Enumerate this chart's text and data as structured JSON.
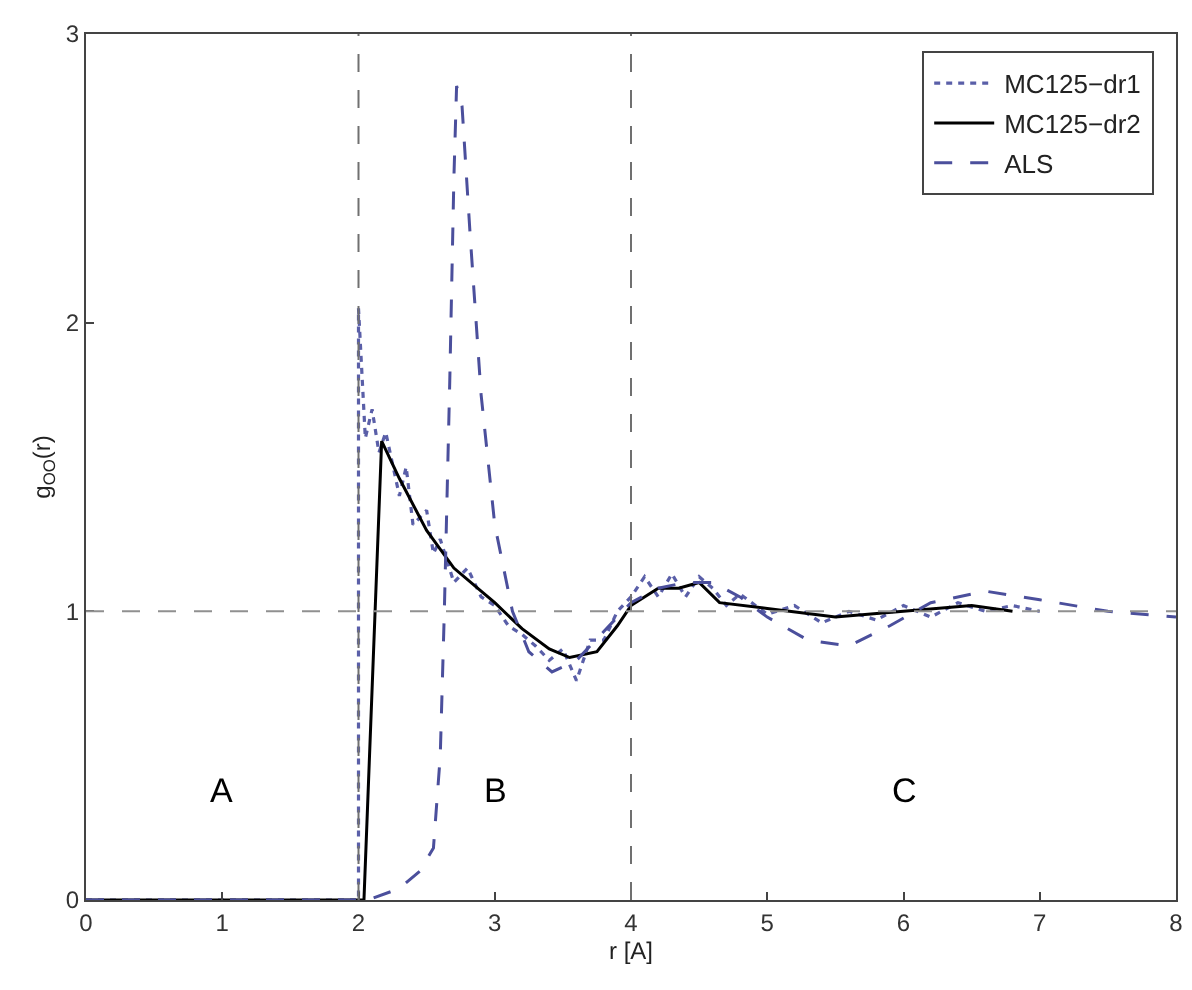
{
  "chart_data": {
    "type": "line",
    "xlabel": "r [A]",
    "ylabel": "g$_{OO}$(r)",
    "xlim": [
      0,
      8
    ],
    "ylim": [
      0,
      3
    ],
    "xticks": [
      0,
      1,
      2,
      3,
      4,
      5,
      6,
      7,
      8
    ],
    "yticks": [
      0,
      1,
      2,
      3
    ],
    "grid": false,
    "legend": "top right",
    "marker": "none",
    "series": [
      {
        "name": "MC125−dr1",
        "color": "#5a5fa8",
        "line_style": "dotted",
        "x": [
          0,
          2.0,
          2.0,
          2.05,
          2.1,
          2.15,
          2.2,
          2.3,
          2.35,
          2.4,
          2.5,
          2.55,
          2.6,
          2.7,
          2.8,
          2.9,
          3.0,
          3.1,
          3.2,
          3.3,
          3.4,
          3.5,
          3.6,
          3.7,
          3.8,
          3.9,
          4.0,
          4.1,
          4.2,
          4.3,
          4.4,
          4.5,
          4.6,
          4.7,
          4.8,
          5.0,
          5.2,
          5.4,
          5.6,
          5.8,
          6.0,
          6.2,
          6.4,
          6.6,
          6.8,
          7.0
        ],
        "values": [
          0,
          0,
          2.05,
          1.6,
          1.7,
          1.55,
          1.62,
          1.4,
          1.5,
          1.3,
          1.35,
          1.2,
          1.25,
          1.1,
          1.15,
          1.05,
          1.02,
          0.95,
          0.92,
          0.88,
          0.83,
          0.87,
          0.76,
          0.9,
          0.9,
          1.0,
          1.05,
          1.12,
          1.05,
          1.13,
          1.05,
          1.12,
          1.08,
          1.02,
          1.06,
          0.99,
          1.02,
          0.96,
          1.0,
          0.97,
          1.02,
          0.98,
          1.03,
          1.0,
          1.02,
          1.0
        ]
      },
      {
        "name": "MC125−dr2",
        "color": "#000000",
        "line_style": "solid",
        "x": [
          0,
          2.04,
          2.17,
          2.3,
          2.5,
          2.7,
          2.9,
          3.0,
          3.2,
          3.4,
          3.55,
          3.75,
          3.9,
          4.0,
          4.2,
          4.35,
          4.5,
          4.65,
          5.0,
          5.5,
          6.0,
          6.5,
          6.8
        ],
        "values": [
          0,
          0,
          1.59,
          1.46,
          1.28,
          1.15,
          1.07,
          1.03,
          0.94,
          0.87,
          0.84,
          0.86,
          0.95,
          1.02,
          1.08,
          1.08,
          1.1,
          1.03,
          1.01,
          0.98,
          1.0,
          1.02,
          1.0
        ]
      },
      {
        "name": "ALS",
        "color": "#4b4f9c",
        "line_style": "dashed",
        "x": [
          0,
          2.07,
          2.3,
          2.45,
          2.55,
          2.6,
          2.63,
          2.67,
          2.7,
          2.72,
          2.76,
          2.82,
          2.9,
          3.0,
          3.13,
          3.25,
          3.42,
          3.6,
          3.8,
          4.0,
          4.2,
          4.4,
          4.6,
          4.8,
          5.0,
          5.3,
          5.6,
          5.9,
          6.2,
          6.6,
          7.0,
          7.5,
          8.0
        ],
        "values": [
          0,
          0,
          0.04,
          0.1,
          0.18,
          0.5,
          1.0,
          1.8,
          2.5,
          2.82,
          2.75,
          2.3,
          1.75,
          1.3,
          1.0,
          0.86,
          0.79,
          0.83,
          0.93,
          1.03,
          1.08,
          1.1,
          1.1,
          1.05,
          0.98,
          0.9,
          0.88,
          0.95,
          1.03,
          1.07,
          1.04,
          1.0,
          0.98
        ]
      }
    ],
    "ref_lines": [
      {
        "axis": "x",
        "value": 2,
        "color": "#707070",
        "line_style": "dashed"
      },
      {
        "axis": "x",
        "value": 4,
        "color": "#707070",
        "line_style": "dashed"
      },
      {
        "axis": "y",
        "value": 1,
        "color": "#909090",
        "line_style": "dashed"
      }
    ],
    "annotations": [
      "A",
      "B",
      "C"
    ]
  }
}
